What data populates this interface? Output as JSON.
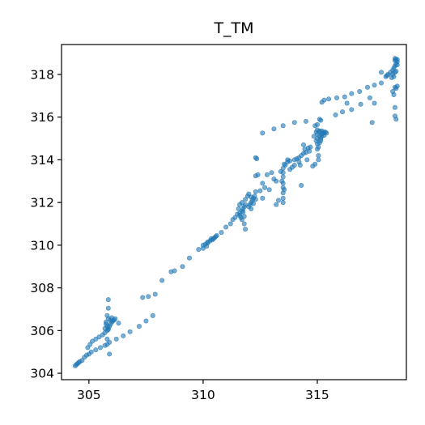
{
  "chart_data": {
    "type": "scatter",
    "title": "T_TM",
    "xlabel": "",
    "ylabel": "",
    "xlim": [
      303.8,
      318.9
    ],
    "ylim": [
      303.7,
      319.4
    ],
    "xticks": [
      305,
      310,
      315
    ],
    "yticks": [
      304,
      306,
      308,
      310,
      312,
      314,
      316,
      318
    ],
    "xtick_labels": [
      "305",
      "310",
      "315"
    ],
    "ytick_labels": [
      "304",
      "306",
      "308",
      "310",
      "312",
      "314",
      "316",
      "318"
    ],
    "grid": false,
    "color": "#1f77b4",
    "points": [
      [
        304.4,
        304.35
      ],
      [
        304.45,
        304.4
      ],
      [
        304.5,
        304.45
      ],
      [
        304.55,
        304.5
      ],
      [
        304.6,
        304.55
      ],
      [
        304.7,
        304.6
      ],
      [
        304.8,
        304.75
      ],
      [
        304.9,
        304.85
      ],
      [
        305.0,
        304.9
      ],
      [
        305.1,
        305.0
      ],
      [
        305.3,
        305.1
      ],
      [
        305.5,
        305.2
      ],
      [
        305.7,
        305.3
      ],
      [
        305.9,
        305.45
      ],
      [
        306.2,
        305.6
      ],
      [
        306.5,
        305.75
      ],
      [
        306.8,
        305.95
      ],
      [
        307.2,
        306.2
      ],
      [
        307.5,
        306.45
      ],
      [
        307.8,
        306.7
      ],
      [
        304.95,
        305.2
      ],
      [
        305.05,
        305.35
      ],
      [
        305.15,
        305.5
      ],
      [
        305.3,
        305.6
      ],
      [
        305.45,
        305.7
      ],
      [
        305.6,
        305.8
      ],
      [
        305.7,
        305.9
      ],
      [
        305.8,
        306.0
      ],
      [
        305.85,
        306.1
      ],
      [
        305.9,
        306.2
      ],
      [
        305.95,
        306.3
      ],
      [
        306.0,
        306.4
      ],
      [
        306.05,
        306.45
      ],
      [
        305.85,
        306.55
      ],
      [
        305.95,
        306.5
      ],
      [
        306.1,
        306.5
      ],
      [
        305.75,
        306.3
      ],
      [
        305.8,
        306.2
      ],
      [
        305.7,
        306.1
      ],
      [
        305.8,
        305.6
      ],
      [
        305.85,
        307.05
      ],
      [
        305.85,
        307.45
      ],
      [
        305.8,
        306.7
      ],
      [
        305.75,
        306.4
      ],
      [
        305.8,
        305.35
      ],
      [
        305.9,
        304.9
      ],
      [
        306.0,
        306.6
      ],
      [
        306.15,
        306.55
      ],
      [
        306.3,
        306.35
      ],
      [
        305.85,
        306.05
      ],
      [
        307.35,
        307.55
      ],
      [
        307.6,
        307.6
      ],
      [
        307.9,
        307.7
      ],
      [
        308.2,
        308.35
      ],
      [
        308.6,
        308.75
      ],
      [
        308.75,
        308.8
      ],
      [
        309.1,
        309.0
      ],
      [
        309.4,
        309.4
      ],
      [
        309.8,
        309.8
      ],
      [
        310.0,
        310.0
      ],
      [
        310.1,
        310.05
      ],
      [
        310.2,
        310.1
      ],
      [
        310.3,
        310.2
      ],
      [
        310.4,
        310.25
      ],
      [
        310.5,
        310.35
      ],
      [
        310.55,
        310.4
      ],
      [
        310.6,
        310.45
      ],
      [
        310.2,
        310.15
      ],
      [
        310.35,
        310.3
      ],
      [
        310.45,
        310.3
      ],
      [
        310.0,
        309.85
      ],
      [
        310.15,
        309.95
      ],
      [
        310.8,
        310.6
      ],
      [
        311.0,
        310.85
      ],
      [
        311.2,
        311.0
      ],
      [
        311.4,
        311.3
      ],
      [
        311.5,
        311.45
      ],
      [
        311.6,
        311.5
      ],
      [
        311.7,
        311.6
      ],
      [
        311.75,
        311.7
      ],
      [
        311.8,
        311.8
      ],
      [
        311.85,
        311.9
      ],
      [
        311.7,
        311.2
      ],
      [
        311.8,
        311.0
      ],
      [
        311.85,
        310.75
      ],
      [
        311.6,
        311.9
      ],
      [
        311.7,
        312.0
      ],
      [
        311.85,
        312.15
      ],
      [
        311.95,
        312.3
      ],
      [
        311.3,
        311.2
      ],
      [
        311.55,
        311.7
      ],
      [
        311.6,
        311.4
      ],
      [
        311.65,
        311.3
      ],
      [
        311.75,
        311.55
      ],
      [
        311.8,
        311.35
      ],
      [
        312.0,
        311.8
      ],
      [
        312.05,
        311.9
      ],
      [
        312.1,
        312.0
      ],
      [
        312.15,
        312.1
      ],
      [
        312.2,
        312.2
      ],
      [
        312.25,
        312.3
      ],
      [
        312.3,
        312.15
      ],
      [
        312.1,
        311.7
      ],
      [
        312.2,
        311.95
      ],
      [
        312.1,
        312.25
      ],
      [
        312.0,
        312.4
      ],
      [
        312.3,
        312.5
      ],
      [
        312.35,
        314.05
      ],
      [
        312.4,
        313.3
      ],
      [
        312.6,
        312.9
      ],
      [
        312.8,
        313.3
      ],
      [
        313.0,
        313.4
      ],
      [
        313.1,
        313.1
      ],
      [
        313.2,
        313.0
      ],
      [
        312.7,
        312.7
      ],
      [
        312.5,
        312.55
      ],
      [
        312.3,
        313.25
      ],
      [
        312.6,
        312.2
      ],
      [
        312.9,
        312.6
      ],
      [
        313.2,
        311.9
      ],
      [
        313.3,
        312.1
      ],
      [
        313.45,
        313.0
      ],
      [
        313.5,
        313.2
      ],
      [
        313.5,
        313.4
      ],
      [
        313.5,
        313.6
      ],
      [
        313.55,
        313.8
      ],
      [
        313.5,
        312.9
      ],
      [
        313.5,
        312.7
      ],
      [
        313.5,
        312.45
      ],
      [
        313.5,
        312.2
      ],
      [
        313.5,
        312.0
      ],
      [
        313.55,
        312.6
      ],
      [
        313.6,
        313.75
      ],
      [
        313.7,
        313.9
      ],
      [
        313.8,
        313.95
      ],
      [
        313.4,
        313.45
      ],
      [
        314.0,
        314.0
      ],
      [
        314.1,
        314.05
      ],
      [
        314.2,
        314.1
      ],
      [
        314.3,
        314.2
      ],
      [
        314.4,
        314.3
      ],
      [
        314.5,
        314.35
      ],
      [
        314.2,
        313.9
      ],
      [
        314.45,
        314.5
      ],
      [
        314.0,
        313.75
      ],
      [
        313.9,
        313.65
      ],
      [
        313.8,
        313.55
      ],
      [
        314.6,
        314.55
      ],
      [
        314.7,
        314.6
      ],
      [
        314.3,
        312.8
      ],
      [
        314.8,
        313.7
      ],
      [
        314.9,
        313.8
      ],
      [
        315.0,
        314.5
      ],
      [
        315.0,
        314.75
      ],
      [
        315.0,
        315.0
      ],
      [
        315.0,
        315.2
      ],
      [
        315.0,
        315.4
      ],
      [
        315.05,
        314.6
      ],
      [
        315.05,
        314.2
      ],
      [
        315.05,
        314.0
      ],
      [
        315.1,
        314.8
      ],
      [
        315.1,
        315.1
      ],
      [
        315.1,
        315.3
      ],
      [
        315.15,
        314.9
      ],
      [
        315.15,
        315.0
      ],
      [
        315.2,
        315.1
      ],
      [
        315.2,
        315.2
      ],
      [
        315.25,
        315.25
      ],
      [
        315.3,
        315.3
      ],
      [
        315.35,
        315.3
      ],
      [
        315.4,
        315.25
      ],
      [
        315.3,
        315.15
      ],
      [
        314.95,
        314.9
      ],
      [
        314.95,
        315.3
      ],
      [
        314.85,
        315.1
      ],
      [
        315.1,
        315.35
      ],
      [
        315.2,
        315.35
      ],
      [
        314.5,
        315.8
      ],
      [
        315.1,
        315.9
      ],
      [
        315.15,
        315.85
      ],
      [
        315.0,
        315.65
      ],
      [
        314.9,
        315.6
      ],
      [
        315.2,
        316.7
      ],
      [
        315.3,
        316.8
      ],
      [
        315.5,
        316.85
      ],
      [
        315.85,
        316.9
      ],
      [
        316.2,
        316.95
      ],
      [
        316.5,
        317.1
      ],
      [
        316.85,
        317.2
      ],
      [
        317.2,
        317.4
      ],
      [
        317.5,
        317.5
      ],
      [
        317.8,
        317.6
      ],
      [
        318.0,
        317.9
      ],
      [
        318.1,
        318.0
      ],
      [
        318.2,
        318.1
      ],
      [
        318.3,
        318.2
      ],
      [
        318.35,
        318.3
      ],
      [
        318.4,
        318.4
      ],
      [
        318.45,
        318.5
      ],
      [
        318.5,
        318.6
      ],
      [
        318.4,
        318.65
      ],
      [
        318.45,
        318.7
      ],
      [
        318.3,
        318.0
      ],
      [
        318.4,
        318.1
      ],
      [
        318.35,
        317.9
      ],
      [
        318.25,
        317.85
      ],
      [
        318.5,
        318.45
      ],
      [
        318.45,
        318.15
      ],
      [
        318.4,
        317.4
      ],
      [
        318.45,
        317.35
      ],
      [
        318.5,
        317.45
      ],
      [
        318.4,
        316.45
      ],
      [
        318.4,
        316.05
      ],
      [
        318.45,
        315.9
      ],
      [
        318.35,
        317.05
      ],
      [
        318.3,
        317.2
      ],
      [
        318.4,
        318.75
      ],
      [
        318.5,
        318.7
      ],
      [
        315.8,
        316.1
      ],
      [
        316.1,
        316.25
      ],
      [
        316.3,
        316.65
      ],
      [
        316.5,
        316.35
      ],
      [
        316.9,
        316.6
      ],
      [
        317.3,
        316.9
      ],
      [
        317.5,
        316.65
      ],
      [
        317.4,
        315.75
      ],
      [
        317.8,
        318.1
      ],
      [
        318.05,
        317.95
      ],
      [
        314.0,
        315.75
      ],
      [
        313.5,
        315.6
      ],
      [
        313.1,
        315.45
      ],
      [
        312.6,
        315.25
      ],
      [
        312.3,
        314.1
      ],
      [
        313.7,
        314.0
      ],
      [
        314.55,
        314.0
      ],
      [
        314.65,
        314.4
      ],
      [
        314.4,
        314.7
      ],
      [
        314.25,
        313.75
      ]
    ]
  }
}
